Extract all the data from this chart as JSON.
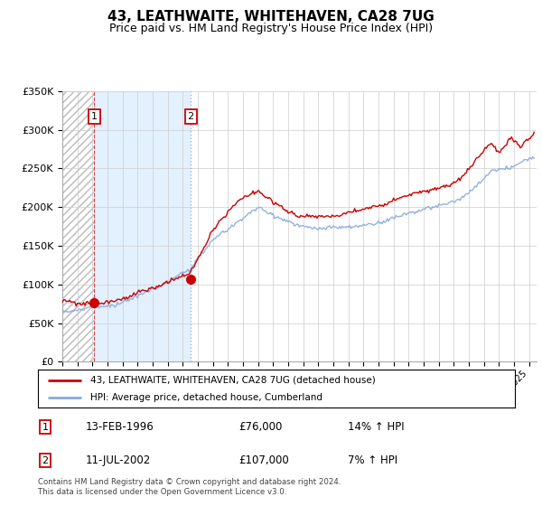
{
  "title": "43, LEATHWAITE, WHITEHAVEN, CA28 7UG",
  "subtitle": "Price paid vs. HM Land Registry's House Price Index (HPI)",
  "legend_line1": "43, LEATHWAITE, WHITEHAVEN, CA28 7UG (detached house)",
  "legend_line2": "HPI: Average price, detached house, Cumberland",
  "purchase1_date": 1996.12,
  "purchase1_price": 76000,
  "purchase1_label": "1",
  "purchase1_display": "13-FEB-1996",
  "purchase1_price_display": "£76,000",
  "purchase1_hpi": "14% ↑ HPI",
  "purchase2_date": 2002.53,
  "purchase2_price": 107000,
  "purchase2_label": "2",
  "purchase2_display": "11-JUL-2002",
  "purchase2_price_display": "£107,000",
  "purchase2_hpi": "7% ↑ HPI",
  "xmin": 1994.0,
  "xmax": 2025.5,
  "ymin": 0,
  "ymax": 350000,
  "yticks": [
    0,
    50000,
    100000,
    150000,
    200000,
    250000,
    300000,
    350000
  ],
  "ytick_labels": [
    "£0",
    "£50K",
    "£100K",
    "£150K",
    "£200K",
    "£250K",
    "£300K",
    "£350K"
  ],
  "red_line_color": "#cc0000",
  "blue_line_color": "#88aadd",
  "shade_color": "#ddeeff",
  "marker_color": "#cc0000",
  "grid_color": "#cccccc",
  "hatch_color": "#bbbbbb",
  "footnote": "Contains HM Land Registry data © Crown copyright and database right 2024.\nThis data is licensed under the Open Government Licence v3.0."
}
